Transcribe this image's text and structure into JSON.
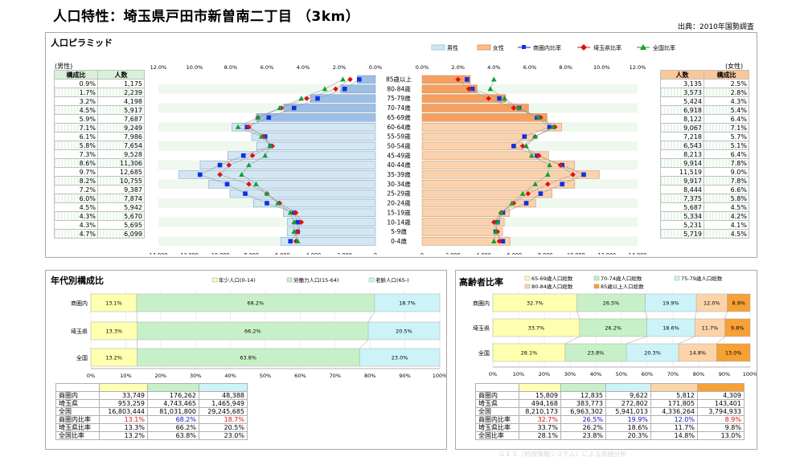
{
  "header": {
    "title": "人口特性：埼玉県戸田市新曽南二丁目 （3km）",
    "source": "出典：2010年国勢調査"
  },
  "pyramid": {
    "panel_title": "人口ピラミッド",
    "legend": [
      "男性",
      "女性",
      "商圏内比率",
      "埼玉県比率",
      "全国比率"
    ],
    "male_label": "(男性)",
    "female_label": "(女性)",
    "col_ratio": "構成比",
    "col_count": "人数",
    "ages": [
      "85歳以上",
      "80-84歳",
      "75-79歳",
      "70-74歳",
      "65-69歳",
      "60-64歳",
      "55-59歳",
      "50-54歳",
      "45-49歳",
      "40-44歳",
      "35-39歳",
      "30-34歳",
      "25-29歳",
      "20-24歳",
      "15-19歳",
      "10-14歳",
      "5-9歳",
      "0-4歳"
    ],
    "male_count_display": [
      "1,175",
      "2,239",
      "4,198",
      "5,917",
      "7,687",
      "9,249",
      "7,986",
      "7,654",
      "9,528",
      "11,306",
      "12,685",
      "10,755",
      "9,387",
      "7,874",
      "5,942",
      "5,670",
      "5,695",
      "6,099"
    ],
    "male_ratio_display": [
      "0.9%",
      "1.7%",
      "3.2%",
      "4.5%",
      "5.9%",
      "7.1%",
      "6.1%",
      "5.8%",
      "7.3%",
      "8.6%",
      "9.7%",
      "8.2%",
      "7.2%",
      "6.0%",
      "4.5%",
      "4.3%",
      "4.3%",
      "4.7%"
    ],
    "female_count_display": [
      "3,135",
      "3,573",
      "5,424",
      "6,918",
      "8,122",
      "9,067",
      "7,218",
      "6,543",
      "8,213",
      "9,914",
      "11,519",
      "9,917",
      "8,444",
      "7,375",
      "5,687",
      "5,334",
      "5,231",
      "5,719"
    ],
    "female_ratio_display": [
      "2.5%",
      "2.8%",
      "4.3%",
      "5.4%",
      "6.4%",
      "7.1%",
      "5.7%",
      "5.1%",
      "6.4%",
      "7.8%",
      "9.0%",
      "7.8%",
      "6.6%",
      "5.8%",
      "4.5%",
      "4.2%",
      "4.1%",
      "4.5%"
    ],
    "pct_ticks_left": [
      "12.0%",
      "10.0%",
      "8.0%",
      "6.0%",
      "4.0%",
      "2.0%",
      "0.0%"
    ],
    "pct_ticks_right": [
      "0.0%",
      "2.0%",
      "4.0%",
      "6.0%",
      "8.0%",
      "10.0%",
      "12.0%"
    ],
    "count_ticks_left": [
      "14,000",
      "12,000",
      "10,000",
      "8,000",
      "6,000",
      "4,000",
      "2,000",
      "0"
    ],
    "count_ticks_right": [
      "0",
      "2,000",
      "4,000",
      "6,000",
      "8,000",
      "10,000",
      "12,000",
      "14,000"
    ]
  },
  "age_structure": {
    "panel_title": "年代別構成比",
    "legend": [
      "年少人口(0-14)",
      "労働力人口(15-64)",
      "老齢人口(65-)"
    ],
    "x_ticks": [
      "0%",
      "10%",
      "20%",
      "30%",
      "40%",
      "50%",
      "60%",
      "70%",
      "80%",
      "90%",
      "100%"
    ],
    "table": {
      "rows": [
        [
          "商圏内",
          "33,749",
          "176,262",
          "48,388"
        ],
        [
          "埼玉県",
          "953,259",
          "4,743,465",
          "1,465,949"
        ],
        [
          "全国",
          "16,803,444",
          "81,031,800",
          "29,245,685"
        ],
        [
          "商圏内比率",
          "13.1%",
          "68.2%",
          "18.7%"
        ],
        [
          "埼玉県比率",
          "13.3%",
          "66.2%",
          "20.5%"
        ],
        [
          "全国比率",
          "13.2%",
          "63.8%",
          "23.0%"
        ]
      ]
    }
  },
  "elderly": {
    "panel_title": "高齢者比率",
    "legend": [
      "65-69歳人口総数",
      "70-74歳人口総数",
      "75-79歳人口総数",
      "80-84歳人口総数",
      "85歳以上人口総数"
    ],
    "x_ticks": [
      "0%",
      "10%",
      "20%",
      "30%",
      "40%",
      "50%",
      "60%",
      "70%",
      "80%",
      "90%",
      "100%"
    ],
    "table": {
      "rows": [
        [
          "商圏内",
          "15,809",
          "12,835",
          "9,622",
          "5,812",
          "4,309"
        ],
        [
          "埼玉県",
          "494,168",
          "383,773",
          "272,802",
          "171,805",
          "143,401"
        ],
        [
          "全国",
          "8,210,173",
          "6,963,302",
          "5,941,013",
          "4,336,264",
          "3,794,933"
        ],
        [
          "商圏内比率",
          "32.7%",
          "26.5%",
          "19.9%",
          "12.0%",
          "8.9%"
        ],
        [
          "埼玉県比率",
          "33.7%",
          "26.2%",
          "18.6%",
          "11.7%",
          "9.8%"
        ],
        [
          "全国比率",
          "28.1%",
          "23.8%",
          "20.3%",
          "14.8%",
          "13.0%"
        ]
      ]
    }
  },
  "chart_data": [
    {
      "type": "bar",
      "title": "人口ピラミッド",
      "categories": [
        "85歳以上",
        "80-84歳",
        "75-79歳",
        "70-74歳",
        "65-69歳",
        "60-64歳",
        "55-59歳",
        "50-54歳",
        "45-49歳",
        "40-44歳",
        "35-39歳",
        "30-34歳",
        "25-29歳",
        "20-24歳",
        "15-19歳",
        "10-14歳",
        "5-9歳",
        "0-4歳"
      ],
      "series": [
        {
          "name": "男性",
          "values": [
            1175,
            2239,
            4198,
            5917,
            7687,
            9249,
            7986,
            7654,
            9528,
            11306,
            12685,
            10755,
            9387,
            7874,
            5942,
            5670,
            5695,
            6099
          ]
        },
        {
          "name": "女性",
          "values": [
            3135,
            3573,
            5424,
            6918,
            8122,
            9067,
            7218,
            6543,
            8213,
            9914,
            11519,
            9917,
            8444,
            7375,
            5687,
            5334,
            5231,
            5719
          ]
        }
      ],
      "markers": {
        "商圏内比率": {
          "male": [
            0.9,
            1.7,
            3.2,
            4.5,
            5.9,
            7.1,
            6.1,
            5.8,
            7.3,
            8.6,
            9.7,
            8.2,
            7.2,
            6.0,
            4.5,
            4.3,
            4.3,
            4.7
          ],
          "female": [
            2.5,
            2.8,
            4.3,
            5.4,
            6.4,
            7.1,
            5.7,
            5.1,
            6.4,
            7.8,
            9.0,
            7.8,
            6.6,
            5.8,
            4.5,
            4.2,
            4.1,
            4.5
          ]
        },
        "埼玉県比率": {
          "male": [
            1.4,
            2.2,
            3.8,
            5.2,
            6.5,
            7.0,
            6.2,
            5.7,
            6.8,
            8.1,
            8.6,
            7.0,
            6.0,
            5.3,
            4.4,
            4.1,
            4.3,
            4.4
          ],
          "female": [
            2.0,
            2.6,
            3.7,
            5.1,
            6.6,
            7.4,
            6.3,
            5.6,
            6.5,
            7.7,
            8.4,
            7.0,
            5.9,
            5.1,
            4.4,
            4.0,
            4.2,
            4.3
          ]
        },
        "全国比率": {
          "male": [
            1.8,
            2.8,
            4.1,
            5.3,
            6.5,
            7.6,
            6.3,
            5.8,
            6.1,
            7.0,
            7.4,
            6.6,
            6.0,
            5.4,
            4.7,
            4.5,
            4.5,
            4.3
          ],
          "female": [
            4.0,
            3.8,
            4.6,
            5.4,
            6.5,
            7.3,
            6.3,
            5.8,
            6.1,
            7.1,
            7.0,
            6.3,
            5.6,
            5.0,
            4.4,
            4.2,
            4.1,
            4.0
          ]
        }
      },
      "xlim_count": [
        0,
        14000
      ],
      "xlim_pct": [
        0,
        12
      ],
      "grid": true,
      "legend_position": "top-right"
    },
    {
      "type": "bar",
      "title": "年代別構成比",
      "stacked": true,
      "orientation": "horizontal",
      "categories": [
        "商圏内",
        "埼玉県",
        "全国"
      ],
      "series": [
        {
          "name": "年少人口(0-14)",
          "values": [
            13.1,
            13.3,
            13.2
          ],
          "color": "#ffffb0"
        },
        {
          "name": "労働力人口(15-64)",
          "values": [
            68.2,
            66.2,
            63.8
          ],
          "color": "#c8f0c8"
        },
        {
          "name": "老齢人口(65-)",
          "values": [
            18.7,
            20.5,
            23.0
          ],
          "color": "#ccf4f8"
        }
      ],
      "xlim": [
        0,
        100
      ],
      "legend_position": "top"
    },
    {
      "type": "bar",
      "title": "高齢者比率",
      "stacked": true,
      "orientation": "horizontal",
      "categories": [
        "商圏内",
        "埼玉県",
        "全国"
      ],
      "series": [
        {
          "name": "65-69歳人口総数",
          "values": [
            32.7,
            33.7,
            28.1
          ],
          "color": "#ffffb0"
        },
        {
          "name": "70-74歳人口総数",
          "values": [
            26.5,
            26.2,
            23.8
          ],
          "color": "#c8f0c8"
        },
        {
          "name": "75-79歳人口総数",
          "values": [
            19.9,
            18.6,
            20.3
          ],
          "color": "#ccf4f8"
        },
        {
          "name": "80-84歳人口総数",
          "values": [
            12.0,
            11.7,
            14.8
          ],
          "color": "#fcd4aa"
        },
        {
          "name": "85歳以上人口総数",
          "values": [
            8.9,
            9.8,
            13.0
          ],
          "color": "#f7a035"
        }
      ],
      "xlim": [
        0,
        100
      ],
      "legend_position": "top"
    }
  ],
  "colors": {
    "male_bar": "#a9c6e8",
    "female_bar": "#f9be8c",
    "marker_blue": "#1030e0",
    "marker_red": "#e01010",
    "marker_green": "#10a030",
    "ratio_red": "#e01010",
    "ratio_blue": "#1010c0"
  },
  "footer": {
    "watermark": "ＧＩＳ（地理情報システム）による商圏分析"
  }
}
